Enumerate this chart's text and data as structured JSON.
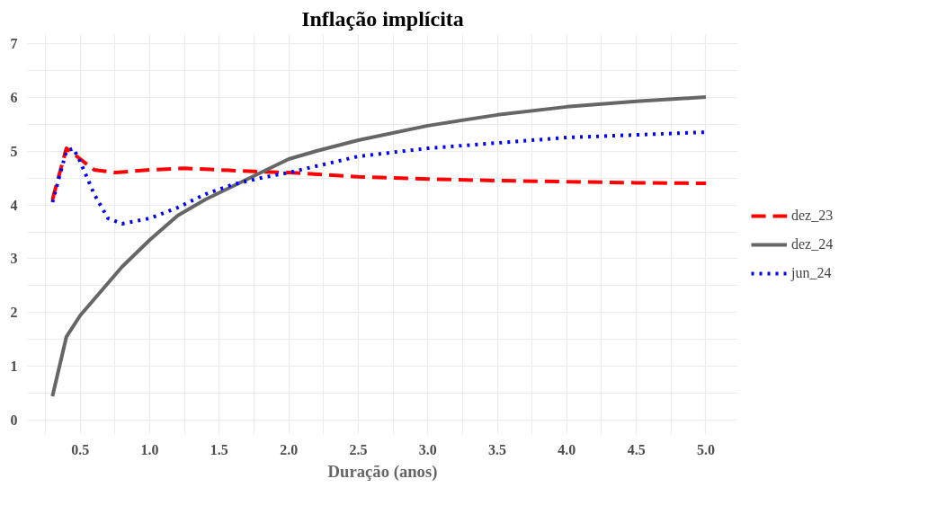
{
  "chart_data": {
    "type": "line",
    "title": "Inflação implícita",
    "xlabel": "Duração (anos)",
    "xlim": [
      0.12,
      5.23
    ],
    "ylim": [
      -0.26,
      7.16
    ],
    "xticks": [
      0.5,
      {
        "value": 1,
        "label": "1.0"
      },
      1.5,
      {
        "value": 2,
        "label": "2.0"
      },
      2.5,
      {
        "value": 3,
        "label": "3.0"
      },
      3.5,
      {
        "value": 4,
        "label": "4.0"
      },
      4.5,
      {
        "value": 5,
        "label": "5.0"
      }
    ],
    "yticks": [
      0,
      1,
      2,
      3,
      4,
      5,
      6,
      7
    ],
    "grid": true,
    "legend": "right",
    "series": [
      {
        "name": "dez_23",
        "color": "#ff0000",
        "line_style": "dashed",
        "x": [
          0.3,
          0.4,
          0.5,
          0.6,
          0.75,
          1.0,
          1.25,
          1.5,
          1.75,
          2.0,
          2.5,
          3.0,
          3.5,
          4.0,
          4.5,
          5.0
        ],
        "values": [
          4.1,
          5.05,
          4.85,
          4.65,
          4.6,
          4.65,
          4.68,
          4.65,
          4.62,
          4.6,
          4.52,
          4.48,
          4.45,
          4.43,
          4.41,
          4.4
        ]
      },
      {
        "name": "dez_24",
        "color": "#666666",
        "line_style": "solid",
        "x": [
          0.3,
          0.4,
          0.5,
          0.6,
          0.7,
          0.8,
          0.9,
          1.0,
          1.2,
          1.4,
          1.6,
          1.8,
          2.0,
          2.2,
          2.5,
          3.0,
          3.5,
          4.0,
          4.5,
          5.0
        ],
        "values": [
          0.45,
          1.55,
          1.95,
          2.25,
          2.55,
          2.85,
          3.1,
          3.35,
          3.8,
          4.1,
          4.35,
          4.6,
          4.85,
          5.0,
          5.2,
          5.47,
          5.67,
          5.82,
          5.92,
          6.0
        ]
      },
      {
        "name": "jun_24",
        "color": "#0000ff",
        "line_style": "dotted",
        "x": [
          0.3,
          0.4,
          0.45,
          0.5,
          0.6,
          0.7,
          0.8,
          1.0,
          1.2,
          1.4,
          1.6,
          1.8,
          2.0,
          2.5,
          3.0,
          3.5,
          4.0,
          4.5,
          5.0
        ],
        "values": [
          4.05,
          5.0,
          5.05,
          4.8,
          4.2,
          3.75,
          3.65,
          3.75,
          3.95,
          4.2,
          4.38,
          4.5,
          4.6,
          4.9,
          5.05,
          5.15,
          5.25,
          5.3,
          5.35
        ]
      }
    ]
  }
}
